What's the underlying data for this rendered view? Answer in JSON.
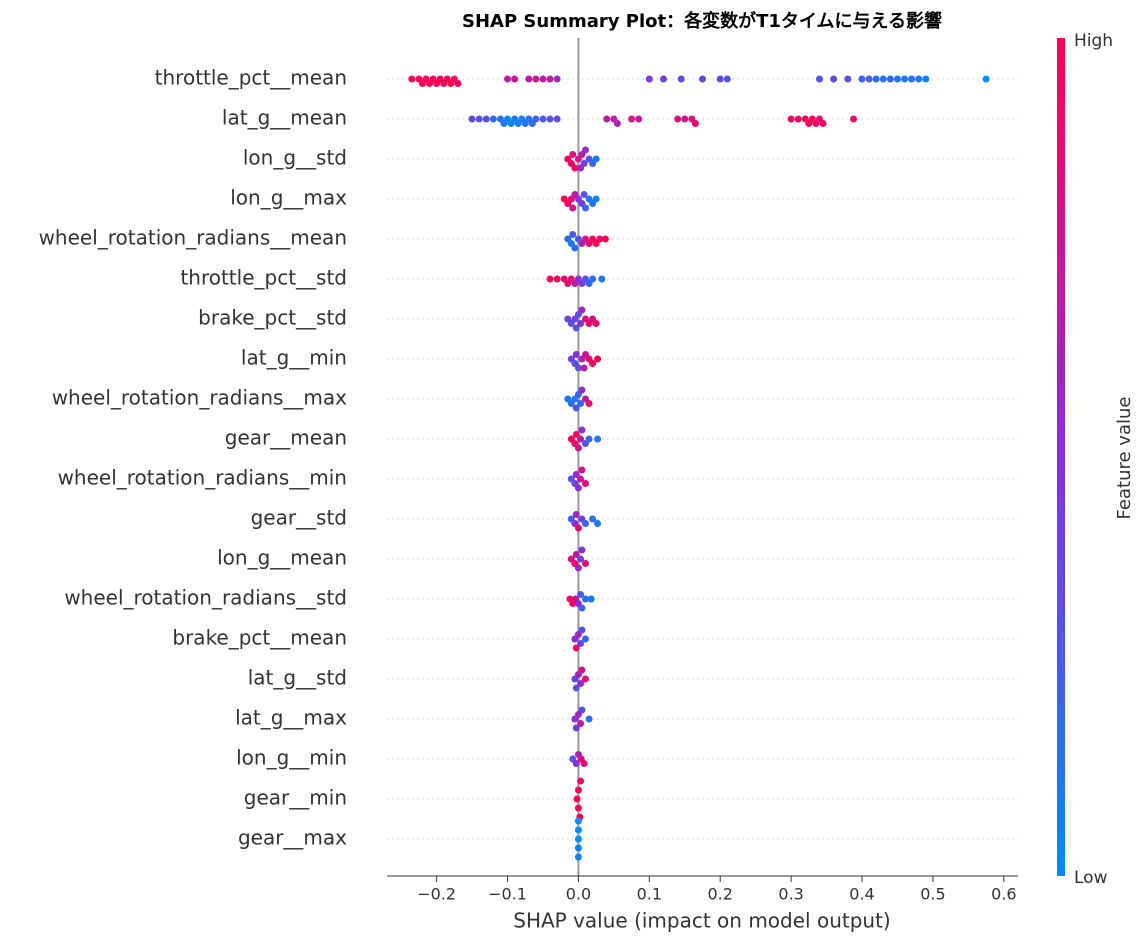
{
  "chart_data": {
    "type": "beeswarm",
    "title": "SHAP Summary Plot：各変数がT1タイムに与える影響",
    "xlabel": "SHAP value (impact on model output)",
    "colorbar_label": "Feature value",
    "colorbar_high": "High",
    "colorbar_low": "Low",
    "low_color": "#008bfb",
    "high_color": "#ff0052",
    "xlim": [
      -0.27,
      0.62
    ],
    "xticks": [
      {
        "value": -0.2,
        "label": "−0.2"
      },
      {
        "value": -0.1,
        "label": "−0.1"
      },
      {
        "value": 0,
        "label": "0.0"
      },
      0.1,
      0.2,
      0.3,
      0.4,
      0.5,
      0.6
    ],
    "grid": true,
    "features": [
      {
        "name": "throttle_pct__mean",
        "shap": [
          -0.235,
          -0.225,
          -0.22,
          -0.215,
          -0.21,
          -0.205,
          -0.2,
          -0.195,
          -0.19,
          -0.185,
          -0.18,
          -0.175,
          -0.17,
          -0.1,
          -0.09,
          -0.07,
          -0.06,
          -0.05,
          -0.04,
          -0.03,
          0.1,
          0.12,
          0.145,
          0.175,
          0.2,
          0.21,
          0.34,
          0.36,
          0.38,
          0.4,
          0.41,
          0.42,
          0.43,
          0.44,
          0.45,
          0.46,
          0.47,
          0.48,
          0.49,
          0.575
        ],
        "feature_value": [
          1,
          1,
          0.95,
          1,
          1,
          0.95,
          1,
          1,
          0.95,
          1,
          1,
          0.9,
          1,
          0.7,
          0.75,
          0.7,
          0.75,
          0.7,
          0.7,
          0.6,
          0.45,
          0.4,
          0.35,
          0.4,
          0.35,
          0.3,
          0.3,
          0.35,
          0.3,
          0.2,
          0.25,
          0.15,
          0.15,
          0.2,
          0.15,
          0.1,
          0.15,
          0.1,
          0.05,
          0
        ]
      },
      {
        "name": "lat_g__mean",
        "shap": [
          -0.15,
          -0.14,
          -0.13,
          -0.12,
          -0.11,
          -0.105,
          -0.1,
          -0.095,
          -0.09,
          -0.085,
          -0.08,
          -0.075,
          -0.07,
          -0.065,
          -0.06,
          -0.05,
          -0.04,
          -0.03,
          0.04,
          0.05,
          0.055,
          0.075,
          0.085,
          0.14,
          0.15,
          0.16,
          0.165,
          0.3,
          0.31,
          0.32,
          0.325,
          0.33,
          0.335,
          0.34,
          0.345,
          0.388
        ],
        "feature_value": [
          0.35,
          0.3,
          0.3,
          0.2,
          0.15,
          0.1,
          0.05,
          0.05,
          0.1,
          0.05,
          0.1,
          0.1,
          0.15,
          0.15,
          0.2,
          0.25,
          0.3,
          0.35,
          0.65,
          0.7,
          0.65,
          0.8,
          0.75,
          0.85,
          0.8,
          0.85,
          0.9,
          0.95,
          0.9,
          1,
          0.95,
          1,
          0.95,
          0.9,
          0.95,
          0.9
        ]
      },
      {
        "name": "lon_g__std",
        "shap": [
          -0.015,
          -0.01,
          -0.005,
          0,
          0.005,
          0.01,
          0.015,
          0.02,
          0.025,
          -0.008,
          0.003,
          0.008
        ],
        "feature_value": [
          1,
          0.9,
          0.95,
          0.8,
          0.7,
          0.5,
          0.3,
          0.2,
          0.1,
          0.85,
          0.6,
          0.4
        ]
      },
      {
        "name": "lon_g__max",
        "shap": [
          -0.02,
          -0.015,
          -0.01,
          -0.005,
          0,
          0.005,
          0.01,
          0.015,
          0.02,
          0.025,
          -0.008,
          0.008
        ],
        "feature_value": [
          1,
          0.95,
          0.9,
          0.7,
          0.5,
          0.4,
          0.2,
          0.1,
          0.15,
          0.05,
          0.8,
          0.3
        ]
      },
      {
        "name": "wheel_rotation_radians__mean",
        "shap": [
          -0.015,
          -0.01,
          -0.005,
          0,
          0.005,
          0.01,
          0.015,
          0.02,
          0.025,
          0.03,
          0.038,
          -0.008
        ],
        "feature_value": [
          0.2,
          0.1,
          0.15,
          0.3,
          0.6,
          0.8,
          0.9,
          0.95,
          1,
          0.9,
          1,
          0.25
        ]
      },
      {
        "name": "throttle_pct__std",
        "shap": [
          -0.04,
          -0.03,
          -0.02,
          -0.015,
          -0.01,
          -0.005,
          0,
          0.005,
          0.01,
          0.015,
          0.02,
          0.033
        ],
        "feature_value": [
          1,
          0.95,
          0.9,
          0.85,
          0.9,
          0.7,
          0.5,
          0.4,
          0.3,
          0.2,
          0.15,
          0.1
        ]
      },
      {
        "name": "brake_pct__std",
        "shap": [
          -0.015,
          -0.01,
          -0.005,
          0,
          0.005,
          0.01,
          0.015,
          0.02,
          0.025,
          0.003,
          -0.003
        ],
        "feature_value": [
          0.4,
          0.35,
          0.4,
          0.3,
          0.6,
          0.8,
          0.9,
          0.85,
          0.9,
          0.5,
          0.3
        ]
      },
      {
        "name": "lat_g__min",
        "shap": [
          -0.01,
          -0.005,
          0,
          0.005,
          0.01,
          0.015,
          0.02,
          0.027,
          -0.003,
          0.008
        ],
        "feature_value": [
          0.4,
          0.3,
          0.35,
          0.6,
          0.8,
          0.9,
          0.95,
          1,
          0.5,
          0.7
        ]
      },
      {
        "name": "wheel_rotation_radians__max",
        "shap": [
          -0.015,
          -0.01,
          -0.005,
          0,
          0.005,
          0.01,
          0.015,
          -0.003,
          0.003
        ],
        "feature_value": [
          0.1,
          0.15,
          0.1,
          0.2,
          0.5,
          0.7,
          0.9,
          0.3,
          0.15
        ]
      },
      {
        "name": "gear__mean",
        "shap": [
          -0.01,
          -0.005,
          0,
          0.005,
          0.01,
          0.015,
          0.027,
          -0.003,
          0.003
        ],
        "feature_value": [
          1,
          0.9,
          0.8,
          0.5,
          0.3,
          0.2,
          0.1,
          0.95,
          0.7
        ]
      },
      {
        "name": "wheel_rotation_radians__min",
        "shap": [
          -0.01,
          -0.005,
          0,
          0.005,
          0.01,
          -0.003,
          0.003
        ],
        "feature_value": [
          0.3,
          0.4,
          0.5,
          0.8,
          0.9,
          0.6,
          0.7
        ]
      },
      {
        "name": "gear__std",
        "shap": [
          -0.01,
          -0.005,
          0,
          0.005,
          0.01,
          0.02,
          0.027,
          -0.003
        ],
        "feature_value": [
          0.2,
          0.5,
          0.9,
          0.4,
          0.2,
          0.15,
          0.1,
          0.6
        ]
      },
      {
        "name": "lon_g__mean",
        "shap": [
          -0.01,
          -0.005,
          0,
          0.005,
          0.01,
          -0.003,
          0.003
        ],
        "feature_value": [
          0.8,
          0.9,
          0.6,
          0.5,
          0.9,
          0.7,
          0.4
        ]
      },
      {
        "name": "wheel_rotation_radians__std",
        "shap": [
          -0.012,
          -0.008,
          -0.004,
          0,
          0.005,
          0.01,
          0.018,
          0.003
        ],
        "feature_value": [
          0.9,
          1,
          0.8,
          0.5,
          0.2,
          0.15,
          0.1,
          0.3
        ]
      },
      {
        "name": "brake_pct__mean",
        "shap": [
          -0.005,
          0,
          0.005,
          0.01,
          -0.003,
          0.003
        ],
        "feature_value": [
          0.5,
          0.6,
          0.3,
          0.2,
          0.9,
          0.4
        ]
      },
      {
        "name": "lat_g__std",
        "shap": [
          -0.005,
          0,
          0.005,
          0.01,
          -0.003,
          0.003
        ],
        "feature_value": [
          0.4,
          0.6,
          0.8,
          0.9,
          0.3,
          0.5
        ]
      },
      {
        "name": "lat_g__max",
        "shap": [
          -0.005,
          0,
          0.005,
          0.015,
          -0.003,
          0.003
        ],
        "feature_value": [
          0.5,
          0.6,
          0.3,
          0.15,
          0.4,
          0.7
        ]
      },
      {
        "name": "lon_g__min",
        "shap": [
          -0.008,
          -0.003,
          0,
          0.004,
          0.008
        ],
        "feature_value": [
          0.3,
          0.5,
          0.6,
          0.8,
          0.9
        ]
      },
      {
        "name": "gear__min",
        "shap": [
          0,
          0,
          0.002,
          -0.002,
          0.003
        ],
        "feature_value": [
          1,
          0.95,
          1,
          1,
          0.95
        ]
      },
      {
        "name": "gear__max",
        "shap": [
          0,
          0,
          0,
          0,
          0
        ],
        "feature_value": [
          0,
          0.05,
          0,
          0.05,
          0
        ]
      }
    ]
  }
}
